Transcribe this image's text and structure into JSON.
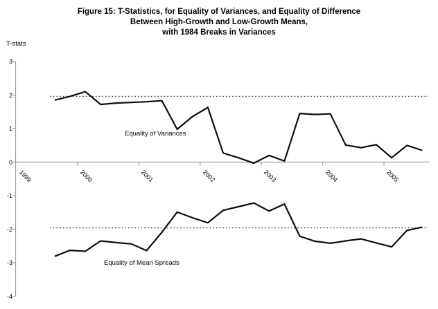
{
  "title": "Figure 15: T-Statistics, for Equality of Variances, and Equality of Difference\nBetween High-Growth and Low-Growth Means,\nwith 1984 Breaks in Variances",
  "y_axis": {
    "label": "T-stats",
    "ticks": [
      3,
      2,
      1,
      0,
      -1,
      -2,
      -3,
      -4
    ]
  },
  "x_axis": {
    "year_labels": [
      "1999",
      "2000",
      "2001",
      "2002",
      "2003",
      "2004",
      "2005"
    ]
  },
  "series_labels": {
    "variances": "Equality of Variances",
    "mean_spreads": "Equality of Mean Spreads"
  },
  "chart_data": {
    "type": "line",
    "title": "Figure 15: T-Statistics, for Equality of Variances, and Equality of Difference Between High-Growth and Low-Growth Means, with 1984 Breaks in Variances",
    "ylabel": "T-stats",
    "ylim": [
      -4,
      3
    ],
    "x_tick_labels": [
      "1999",
      "2000",
      "2001",
      "2002",
      "2003",
      "2004",
      "2005"
    ],
    "categories": [
      "1999Q3",
      "1999Q4",
      "2000Q1",
      "2000Q2",
      "2000Q3",
      "2000Q4",
      "2001Q1",
      "2001Q2",
      "2001Q3",
      "2001Q4",
      "2002Q1",
      "2002Q2",
      "2002Q3",
      "2002Q4",
      "2003Q1",
      "2003Q2",
      "2003Q3",
      "2003Q4",
      "2004Q1",
      "2004Q2",
      "2004Q3",
      "2004Q4",
      "2005Q1",
      "2005Q2",
      "2005Q3"
    ],
    "series": [
      {
        "name": "Equality of Variances",
        "values": [
          1.85,
          1.96,
          2.1,
          1.72,
          1.76,
          1.78,
          1.8,
          1.83,
          0.98,
          1.36,
          1.63,
          0.27,
          0.13,
          -0.03,
          0.2,
          0.03,
          1.45,
          1.42,
          1.44,
          0.51,
          0.43,
          0.52,
          0.13,
          0.5,
          0.35
        ]
      },
      {
        "name": "Equality of Mean Spreads",
        "values": [
          -2.81,
          -2.63,
          -2.66,
          -2.35,
          -2.4,
          -2.44,
          -2.64,
          -2.09,
          -1.49,
          -1.66,
          -1.81,
          -1.44,
          -1.33,
          -1.22,
          -1.46,
          -1.25,
          -2.21,
          -2.36,
          -2.42,
          -2.35,
          -2.29,
          -2.41,
          -2.53,
          -2.04,
          -1.94
        ]
      }
    ],
    "reference_lines": [
      1.96,
      -1.96
    ],
    "legend_position": "inline-labels",
    "grid": false,
    "colors": {
      "series_line": "#0d0d0d",
      "reference_line": "#474747",
      "axis_line": "#9e9e9e",
      "text": "#000000",
      "background": "#ffffff"
    }
  }
}
